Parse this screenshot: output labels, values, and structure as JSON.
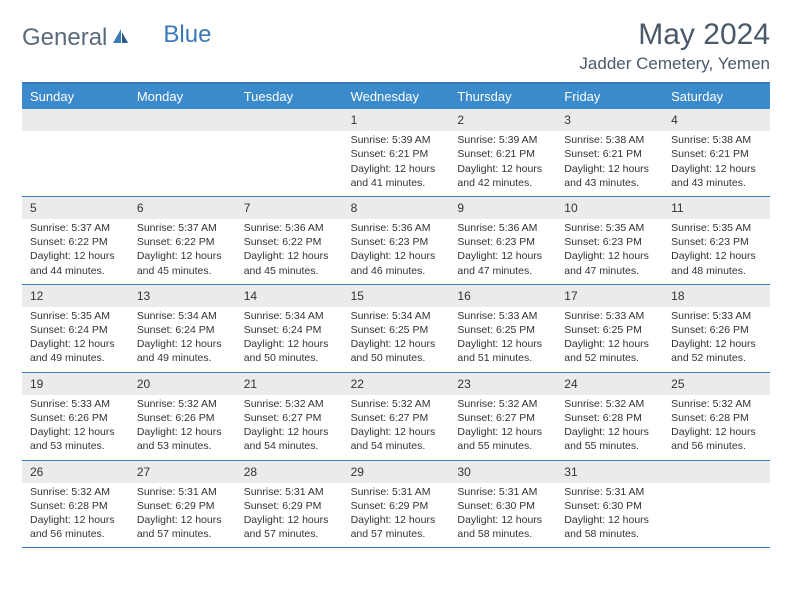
{
  "logo": {
    "general": "General",
    "blue": "Blue"
  },
  "title": "May 2024",
  "location": "Jadder Cemetery, Yemen",
  "day_names": [
    "Sunday",
    "Monday",
    "Tuesday",
    "Wednesday",
    "Thursday",
    "Friday",
    "Saturday"
  ],
  "colors": {
    "header_bar": "#3a8acc",
    "accent": "#3a7ab8",
    "daynum_bg": "#ebebeb",
    "text": "#333333",
    "title_text": "#4a5a6a"
  },
  "weeks": [
    [
      null,
      null,
      null,
      {
        "n": "1",
        "sr": "Sunrise: 5:39 AM",
        "ss": "Sunset: 6:21 PM",
        "d1": "Daylight: 12 hours",
        "d2": "and 41 minutes."
      },
      {
        "n": "2",
        "sr": "Sunrise: 5:39 AM",
        "ss": "Sunset: 6:21 PM",
        "d1": "Daylight: 12 hours",
        "d2": "and 42 minutes."
      },
      {
        "n": "3",
        "sr": "Sunrise: 5:38 AM",
        "ss": "Sunset: 6:21 PM",
        "d1": "Daylight: 12 hours",
        "d2": "and 43 minutes."
      },
      {
        "n": "4",
        "sr": "Sunrise: 5:38 AM",
        "ss": "Sunset: 6:21 PM",
        "d1": "Daylight: 12 hours",
        "d2": "and 43 minutes."
      }
    ],
    [
      {
        "n": "5",
        "sr": "Sunrise: 5:37 AM",
        "ss": "Sunset: 6:22 PM",
        "d1": "Daylight: 12 hours",
        "d2": "and 44 minutes."
      },
      {
        "n": "6",
        "sr": "Sunrise: 5:37 AM",
        "ss": "Sunset: 6:22 PM",
        "d1": "Daylight: 12 hours",
        "d2": "and 45 minutes."
      },
      {
        "n": "7",
        "sr": "Sunrise: 5:36 AM",
        "ss": "Sunset: 6:22 PM",
        "d1": "Daylight: 12 hours",
        "d2": "and 45 minutes."
      },
      {
        "n": "8",
        "sr": "Sunrise: 5:36 AM",
        "ss": "Sunset: 6:23 PM",
        "d1": "Daylight: 12 hours",
        "d2": "and 46 minutes."
      },
      {
        "n": "9",
        "sr": "Sunrise: 5:36 AM",
        "ss": "Sunset: 6:23 PM",
        "d1": "Daylight: 12 hours",
        "d2": "and 47 minutes."
      },
      {
        "n": "10",
        "sr": "Sunrise: 5:35 AM",
        "ss": "Sunset: 6:23 PM",
        "d1": "Daylight: 12 hours",
        "d2": "and 47 minutes."
      },
      {
        "n": "11",
        "sr": "Sunrise: 5:35 AM",
        "ss": "Sunset: 6:23 PM",
        "d1": "Daylight: 12 hours",
        "d2": "and 48 minutes."
      }
    ],
    [
      {
        "n": "12",
        "sr": "Sunrise: 5:35 AM",
        "ss": "Sunset: 6:24 PM",
        "d1": "Daylight: 12 hours",
        "d2": "and 49 minutes."
      },
      {
        "n": "13",
        "sr": "Sunrise: 5:34 AM",
        "ss": "Sunset: 6:24 PM",
        "d1": "Daylight: 12 hours",
        "d2": "and 49 minutes."
      },
      {
        "n": "14",
        "sr": "Sunrise: 5:34 AM",
        "ss": "Sunset: 6:24 PM",
        "d1": "Daylight: 12 hours",
        "d2": "and 50 minutes."
      },
      {
        "n": "15",
        "sr": "Sunrise: 5:34 AM",
        "ss": "Sunset: 6:25 PM",
        "d1": "Daylight: 12 hours",
        "d2": "and 50 minutes."
      },
      {
        "n": "16",
        "sr": "Sunrise: 5:33 AM",
        "ss": "Sunset: 6:25 PM",
        "d1": "Daylight: 12 hours",
        "d2": "and 51 minutes."
      },
      {
        "n": "17",
        "sr": "Sunrise: 5:33 AM",
        "ss": "Sunset: 6:25 PM",
        "d1": "Daylight: 12 hours",
        "d2": "and 52 minutes."
      },
      {
        "n": "18",
        "sr": "Sunrise: 5:33 AM",
        "ss": "Sunset: 6:26 PM",
        "d1": "Daylight: 12 hours",
        "d2": "and 52 minutes."
      }
    ],
    [
      {
        "n": "19",
        "sr": "Sunrise: 5:33 AM",
        "ss": "Sunset: 6:26 PM",
        "d1": "Daylight: 12 hours",
        "d2": "and 53 minutes."
      },
      {
        "n": "20",
        "sr": "Sunrise: 5:32 AM",
        "ss": "Sunset: 6:26 PM",
        "d1": "Daylight: 12 hours",
        "d2": "and 53 minutes."
      },
      {
        "n": "21",
        "sr": "Sunrise: 5:32 AM",
        "ss": "Sunset: 6:27 PM",
        "d1": "Daylight: 12 hours",
        "d2": "and 54 minutes."
      },
      {
        "n": "22",
        "sr": "Sunrise: 5:32 AM",
        "ss": "Sunset: 6:27 PM",
        "d1": "Daylight: 12 hours",
        "d2": "and 54 minutes."
      },
      {
        "n": "23",
        "sr": "Sunrise: 5:32 AM",
        "ss": "Sunset: 6:27 PM",
        "d1": "Daylight: 12 hours",
        "d2": "and 55 minutes."
      },
      {
        "n": "24",
        "sr": "Sunrise: 5:32 AM",
        "ss": "Sunset: 6:28 PM",
        "d1": "Daylight: 12 hours",
        "d2": "and 55 minutes."
      },
      {
        "n": "25",
        "sr": "Sunrise: 5:32 AM",
        "ss": "Sunset: 6:28 PM",
        "d1": "Daylight: 12 hours",
        "d2": "and 56 minutes."
      }
    ],
    [
      {
        "n": "26",
        "sr": "Sunrise: 5:32 AM",
        "ss": "Sunset: 6:28 PM",
        "d1": "Daylight: 12 hours",
        "d2": "and 56 minutes."
      },
      {
        "n": "27",
        "sr": "Sunrise: 5:31 AM",
        "ss": "Sunset: 6:29 PM",
        "d1": "Daylight: 12 hours",
        "d2": "and 57 minutes."
      },
      {
        "n": "28",
        "sr": "Sunrise: 5:31 AM",
        "ss": "Sunset: 6:29 PM",
        "d1": "Daylight: 12 hours",
        "d2": "and 57 minutes."
      },
      {
        "n": "29",
        "sr": "Sunrise: 5:31 AM",
        "ss": "Sunset: 6:29 PM",
        "d1": "Daylight: 12 hours",
        "d2": "and 57 minutes."
      },
      {
        "n": "30",
        "sr": "Sunrise: 5:31 AM",
        "ss": "Sunset: 6:30 PM",
        "d1": "Daylight: 12 hours",
        "d2": "and 58 minutes."
      },
      {
        "n": "31",
        "sr": "Sunrise: 5:31 AM",
        "ss": "Sunset: 6:30 PM",
        "d1": "Daylight: 12 hours",
        "d2": "and 58 minutes."
      },
      null
    ]
  ]
}
